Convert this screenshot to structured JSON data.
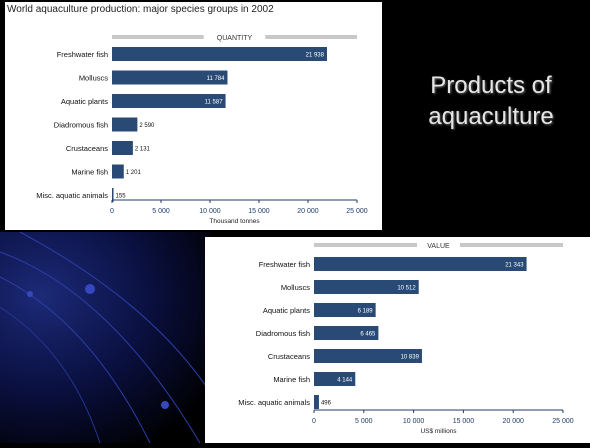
{
  "heading": {
    "line1": "Products of",
    "line2": "aquaculture"
  },
  "colors": {
    "bar": "#284a74",
    "band": "#c8c8c8",
    "axis": "#1f3b66",
    "tick_text": "#1f3b66"
  },
  "chart_data": [
    {
      "type": "bar",
      "orientation": "horizontal",
      "title": "World aquaculture production: major species groups in 2002",
      "band_label": "QUANTITY",
      "categories": [
        "Freshwater fish",
        "Molluscs",
        "Aquatic plants",
        "Diadromous fish",
        "Crustaceans",
        "Marine fish",
        "Misc. aquatic animals"
      ],
      "values": [
        21938,
        11784,
        11587,
        2590,
        2131,
        1201,
        155
      ],
      "value_labels": [
        "21 938",
        "11 784",
        "11 587",
        "2 590",
        "2 131",
        "1 201",
        "155"
      ],
      "xticks": [
        0,
        5000,
        10000,
        15000,
        20000,
        25000
      ],
      "xtick_labels": [
        "0",
        "5 000",
        "10 000",
        "15 000",
        "20 000",
        "25 000"
      ],
      "xlabel": "Thousand tonnes",
      "xlim": [
        0,
        25000
      ]
    },
    {
      "type": "bar",
      "orientation": "horizontal",
      "band_label": "VALUE",
      "categories": [
        "Freshwater fish",
        "Molluscs",
        "Aquatic plants",
        "Diadromous fish",
        "Crustaceans",
        "Marine fish",
        "Misc. aquatic animals"
      ],
      "values": [
        21343,
        10512,
        6189,
        6465,
        10839,
        4144,
        496
      ],
      "value_labels": [
        "21 343",
        "10 512",
        "6 189",
        "6 465",
        "10 839",
        "4 144",
        "496"
      ],
      "xticks": [
        0,
        5000,
        10000,
        15000,
        20000,
        25000
      ],
      "xtick_labels": [
        "0",
        "5 000",
        "10 000",
        "15 000",
        "20 000",
        "25 000"
      ],
      "xlabel": "US$ millions",
      "xlim": [
        0,
        25000
      ]
    }
  ]
}
